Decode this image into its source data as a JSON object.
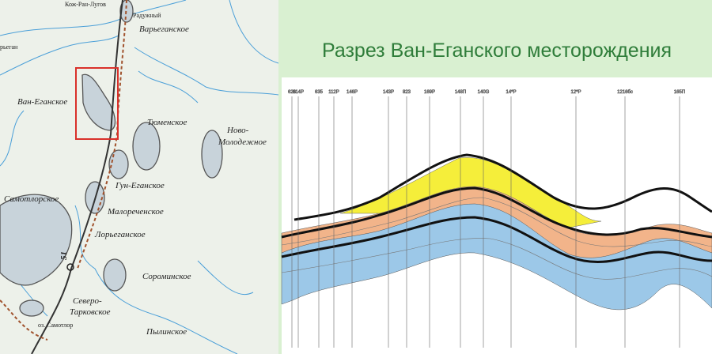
{
  "map": {
    "labels": [
      "Кож-Ран-Лугов",
      "Радужный",
      "Варьеганское",
      "рьеган",
      "Ван-Еганское",
      "Тюменское",
      "Ново-",
      "Молодежное",
      "Гун-Еганское",
      "Самотлорское",
      "Малореченское",
      "Лорьеганское",
      "Сороминское",
      "Северо-",
      "Тарковское",
      "оз. Самотлор",
      "Пылинское",
      "51"
    ]
  },
  "section": {
    "title": "Разрез Ван-Еганского месторождения",
    "wells": [
      "626",
      "614P",
      "635",
      "112P",
      "146P",
      "143P",
      "823",
      "169P",
      "148П",
      "140G",
      "14*P",
      "12*P",
      "1216бс",
      "165П"
    ]
  }
}
